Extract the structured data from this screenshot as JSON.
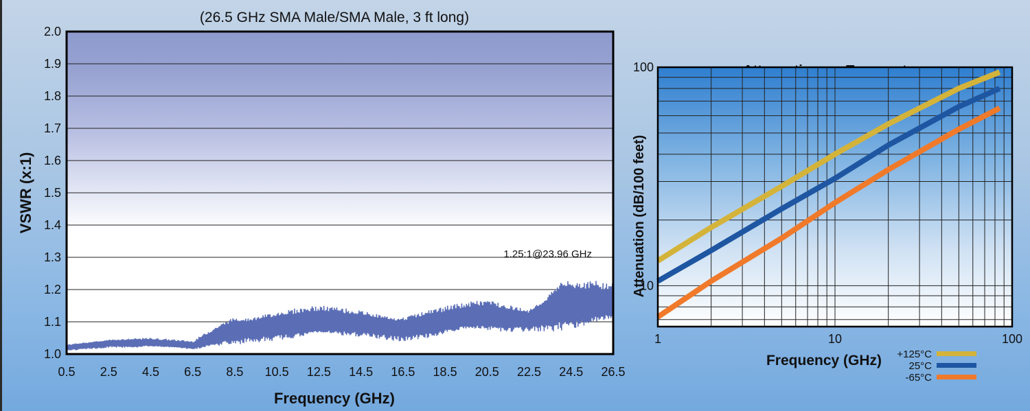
{
  "chart_data": [
    {
      "type": "line",
      "title": "(26.5 GHz SMA Male/SMA Male, 3 ft long)",
      "xlabel": "Frequency (GHz)",
      "ylabel": "VSWR (x:1)",
      "xlim": [
        0.5,
        26.5
      ],
      "ylim": [
        1.0,
        2.0
      ],
      "x_ticks": [
        "0.5",
        "2.5",
        "4.5",
        "6.5",
        "8.5",
        "10.5",
        "12.5",
        "14.5",
        "16.5",
        "18.5",
        "20.5",
        "22.5",
        "24.5",
        "26.5"
      ],
      "y_ticks": [
        "1.0",
        "1.1",
        "1.2",
        "1.3",
        "1.4",
        "1.5",
        "1.6",
        "1.7",
        "1.8",
        "1.9",
        "2.0"
      ],
      "grid": "horizontal",
      "annotation": "1.25:1@23.96 GHz",
      "series": [
        {
          "color": "#5a6db5",
          "envelope_x": [
            0.5,
            2.5,
            4.5,
            6.5,
            8.5,
            10.5,
            12.5,
            14.5,
            16.5,
            18.5,
            20.5,
            22.5,
            23.96,
            24.5,
            26.5
          ],
          "envelope_upper": [
            1.03,
            1.05,
            1.05,
            1.04,
            1.13,
            1.14,
            1.15,
            1.14,
            1.13,
            1.15,
            1.17,
            1.15,
            1.25,
            1.24,
            1.22
          ],
          "envelope_lower": [
            1.01,
            1.02,
            1.02,
            1.01,
            1.03,
            1.04,
            1.04,
            1.05,
            1.04,
            1.05,
            1.06,
            1.07,
            1.07,
            1.07,
            1.08
          ]
        }
      ]
    },
    {
      "type": "line",
      "title": "Attenuation vs. Temperature",
      "xlabel": "Frequency (GHz)",
      "ylabel": "Attenuation (dB/100 feet)",
      "xscale": "log",
      "yscale": "log",
      "xlim": [
        1,
        100
      ],
      "ylim": [
        6.5,
        100
      ],
      "x_ticks": [
        "1",
        "10",
        "100"
      ],
      "y_ticks": [
        "10",
        "100"
      ],
      "grid": true,
      "legend_position": "bottom-right",
      "series": [
        {
          "name": "+125°C",
          "color": "#d4b33a",
          "x": [
            1,
            2,
            5,
            10,
            20,
            50,
            85
          ],
          "y": [
            13,
            18.5,
            28.5,
            40,
            55,
            80,
            95
          ]
        },
        {
          "name": "25°C",
          "color": "#1e56a2",
          "x": [
            1,
            2,
            5,
            10,
            20,
            50,
            85
          ],
          "y": [
            10.5,
            14.5,
            22.5,
            31,
            44,
            66,
            80
          ]
        },
        {
          "name": "-65°C",
          "color": "#f07a2a",
          "x": [
            1,
            2,
            5,
            10,
            20,
            50,
            85
          ],
          "y": [
            7.2,
            10.5,
            16.5,
            24,
            34,
            52,
            65
          ]
        }
      ]
    }
  ]
}
